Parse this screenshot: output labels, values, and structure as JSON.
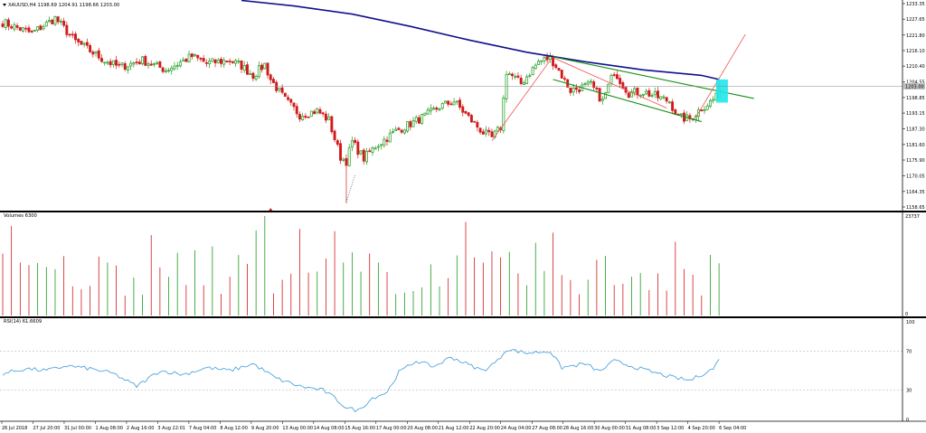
{
  "colors": {
    "bull": "#1e9a1e",
    "bear": "#d11a1a",
    "ma": "#10108c",
    "channel": "#139013",
    "trend": "#f05050",
    "rsi": "#3a9ad9",
    "highlight": "#21e5ea",
    "price_tag_bg": "#c0c0c0"
  },
  "chart_data": [
    {
      "type": "candlestick",
      "symbol_header": "XAUUSD,H4  1198.69 1204.91 1198.66 1203.00",
      "price_ticks": [
        "1233.35",
        "1227.65",
        "1221.80",
        "1216.10",
        "1210.40",
        "1204.55",
        "1198.85",
        "1193.15",
        "1187.30",
        "1181.60",
        "1175.90",
        "1170.05",
        "1164.35",
        "1158.65"
      ],
      "current_price_label": "1203.00",
      "ylim": [
        1158.65,
        1233.35
      ],
      "x_labels": [
        "26 Jul 2018",
        "27 Jul 20:00",
        "31 Jul 00:00",
        "1 Aug 08:00",
        "2 Aug 16:00",
        "3 Aug 22:01",
        "7 Aug 04:00",
        "8 Aug 12:00",
        "9 Aug 20:00",
        "13 Aug 00:00",
        "14 Aug 08:00",
        "15 Aug 16:00",
        "17 Aug 00:00",
        "20 Aug 08:00",
        "21 Aug 12:00",
        "22 Aug 20:00",
        "24 Aug 04:00",
        "27 Aug 08:00",
        "28 Aug 16:00",
        "30 Aug 00:00",
        "31 Aug 08:00",
        "3 Sep 12:00",
        "4 Sep 20:00",
        "6 Sep 04:00"
      ],
      "anchors": [
        [
          0,
          1226.5
        ],
        [
          10,
          1222.5
        ],
        [
          18,
          1228.0
        ],
        [
          25,
          1219.5
        ],
        [
          35,
          1212.5
        ],
        [
          40,
          1210.0
        ],
        [
          48,
          1212.5
        ],
        [
          56,
          1209.0
        ],
        [
          65,
          1214.0
        ],
        [
          70,
          1211.5
        ],
        [
          78,
          1212.5
        ],
        [
          82,
          1210.5
        ],
        [
          86,
          1207.0
        ],
        [
          90,
          1211.0
        ],
        [
          92,
          1205.5
        ],
        [
          97,
          1198.0
        ],
        [
          102,
          1192.5
        ],
        [
          108,
          1194.0
        ],
        [
          112,
          1190.5
        ],
        [
          116,
          1177.0
        ],
        [
          118,
          1175.5
        ],
        [
          120,
          1182.5
        ],
        [
          124,
          1176.5
        ],
        [
          128,
          1181.0
        ],
        [
          135,
          1186.5
        ],
        [
          145,
          1192.0
        ],
        [
          150,
          1195.5
        ],
        [
          155,
          1197.5
        ],
        [
          160,
          1191.5
        ],
        [
          165,
          1186.0
        ],
        [
          168,
          1184.0
        ],
        [
          171,
          1188.0
        ],
        [
          173,
          1208.5
        ],
        [
          178,
          1204.0
        ],
        [
          184,
          1212.0
        ],
        [
          188,
          1213.5
        ],
        [
          190,
          1210.5
        ],
        [
          195,
          1201.5
        ],
        [
          202,
          1203.5
        ],
        [
          206,
          1197.5
        ],
        [
          210,
          1208.5
        ],
        [
          215,
          1200.5
        ],
        [
          220,
          1201.0
        ],
        [
          225,
          1199.0
        ],
        [
          229,
          1197.5
        ],
        [
          232,
          1191.5
        ],
        [
          236,
          1191.0
        ],
        [
          240,
          1195.0
        ],
        [
          244,
          1198.0
        ],
        [
          246,
          1203.0
        ]
      ],
      "moving_average": [
        [
          82,
          1234.5
        ],
        [
          100,
          1232.5
        ],
        [
          120,
          1229.5
        ],
        [
          140,
          1225.0
        ],
        [
          160,
          1220.0
        ],
        [
          180,
          1215.5
        ],
        [
          200,
          1212.0
        ],
        [
          220,
          1209.0
        ],
        [
          240,
          1207.0
        ],
        [
          246,
          1205.5
        ]
      ],
      "channel_upper": [
        [
          189,
          1213.8
        ],
        [
          258,
          1198.5
        ]
      ],
      "channel_lower": [
        [
          189,
          1205.5
        ],
        [
          240,
          1190.0
        ]
      ],
      "trendlines": [
        [
          [
            168,
            1183.0
          ],
          [
            188,
            1212.5
          ]
        ],
        [
          [
            189,
            1213.5
          ],
          [
            228,
            1195.0
          ]
        ],
        [
          [
            238,
            1191.5
          ],
          [
            255,
            1222.0
          ]
        ]
      ]
    },
    {
      "type": "bar",
      "title": "Volumes 6300",
      "ylim": [
        0,
        23737
      ],
      "tick_labels": [
        "23737",
        "0"
      ]
    },
    {
      "type": "line",
      "title": "RSI(14) 61.6609",
      "ylim": [
        0,
        100
      ],
      "tick_labels": [
        "100",
        "70",
        "30",
        "0"
      ],
      "levels": [
        70,
        30
      ],
      "anchors": [
        [
          0,
          47
        ],
        [
          8,
          52
        ],
        [
          15,
          50
        ],
        [
          22,
          55
        ],
        [
          30,
          52
        ],
        [
          38,
          47
        ],
        [
          46,
          34
        ],
        [
          54,
          50
        ],
        [
          62,
          46
        ],
        [
          70,
          53
        ],
        [
          78,
          50
        ],
        [
          86,
          57
        ],
        [
          94,
          42
        ],
        [
          102,
          34
        ],
        [
          110,
          30
        ],
        [
          114,
          22
        ],
        [
          118,
          12
        ],
        [
          122,
          9
        ],
        [
          127,
          22
        ],
        [
          132,
          28
        ],
        [
          136,
          48
        ],
        [
          142,
          60
        ],
        [
          148,
          54
        ],
        [
          154,
          64
        ],
        [
          160,
          56
        ],
        [
          165,
          50
        ],
        [
          170,
          60
        ],
        [
          173,
          72
        ],
        [
          180,
          68
        ],
        [
          188,
          70
        ],
        [
          192,
          53
        ],
        [
          200,
          57
        ],
        [
          205,
          49
        ],
        [
          210,
          60
        ],
        [
          220,
          51
        ],
        [
          230,
          43
        ],
        [
          236,
          40
        ],
        [
          240,
          46
        ],
        [
          244,
          52
        ],
        [
          246,
          61.66
        ]
      ]
    }
  ]
}
